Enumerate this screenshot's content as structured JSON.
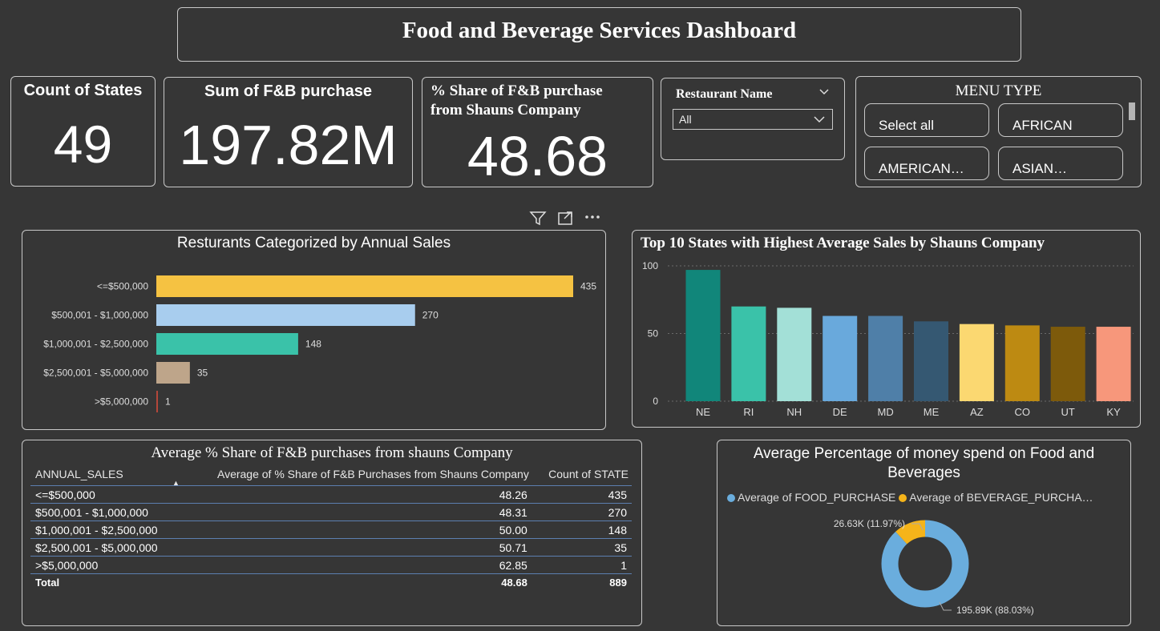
{
  "title": "Food and Beverage Services Dashboard",
  "kpis": {
    "states": {
      "label": "Count of States",
      "value": "49"
    },
    "sum": {
      "label": "Sum of F&B purchase",
      "value": "197.82M"
    },
    "share": {
      "label_line1": "% Share of F&B purchase",
      "label_line2": "from Shauns Company",
      "value": "48.68"
    }
  },
  "restaurant_slicer": {
    "label": "Restaurant Name",
    "selected": "All"
  },
  "menu_slicer": {
    "label": "MENU TYPE",
    "options": [
      "Select all",
      "AFRICAN",
      "AMERICAN…",
      "ASIAN…"
    ]
  },
  "colors": {
    "background": "#363636",
    "bar_colors": [
      "#f5c242",
      "#a8cdee",
      "#3ac2a9",
      "#bea58a",
      "#b4473a"
    ],
    "col_colors": [
      "#11867a",
      "#3ac2a9",
      "#a3e0d7",
      "#69a9dc",
      "#4f7fa8",
      "#355872",
      "#fbd871",
      "#bd8a12",
      "#7d5a0b",
      "#f7977b"
    ],
    "donut_food": "#6aaddd",
    "donut_bev": "#f5b41a"
  },
  "chart_data": [
    {
      "type": "bar",
      "orientation": "horizontal",
      "title": "Resturants Categorized by Annual Sales",
      "categories": [
        "<=$500,000",
        "$500,001 - $1,000,000",
        "$1,000,001 - $2,500,000",
        "$2,500,001 - $5,000,000",
        ">$5,000,000"
      ],
      "values": [
        435,
        270,
        148,
        35,
        1
      ],
      "data_labels": [
        "435",
        "270",
        "148",
        "35",
        "1"
      ],
      "xlim": [
        0,
        435
      ]
    },
    {
      "type": "bar",
      "title": "Top 10 States with Highest Average Sales by Shauns Company",
      "categories": [
        "NE",
        "RI",
        "NH",
        "DE",
        "MD",
        "ME",
        "AZ",
        "CO",
        "UT",
        "KY"
      ],
      "values": [
        97,
        70,
        69,
        63,
        63,
        59,
        57,
        56,
        55,
        55
      ],
      "yticks": [
        "0",
        "50",
        "100"
      ],
      "ylim": [
        0,
        100
      ],
      "grid": true
    },
    {
      "type": "pie",
      "title": "Average Percentage of money spend on Food and Beverages",
      "legend": [
        "Average of FOOD_PURCHASE",
        "Average of BEVERAGE_PURCHA…"
      ],
      "slices": [
        {
          "name": "Average of FOOD_PURCHASE",
          "value": 195.89,
          "unit": "K",
          "percent": 88.03,
          "label": "195.89K (88.03%)"
        },
        {
          "name": "Average of BEVERAGE_PURCHASE",
          "value": 26.63,
          "unit": "K",
          "percent": 11.97,
          "label": "26.63K (11.97%)"
        }
      ]
    }
  ],
  "table": {
    "title": "Average % Share of F&B purchases from shauns Company",
    "columns": [
      "ANNUAL_SALES",
      "Average of % Share of F&B Purchases from Shauns Company",
      "Count of STATE"
    ],
    "rows": [
      [
        "<=$500,000",
        "48.26",
        "435"
      ],
      [
        "$500,001 - $1,000,000",
        "48.31",
        "270"
      ],
      [
        "$1,000,001 - $2,500,000",
        "50.00",
        "148"
      ],
      [
        "$2,500,001 - $5,000,000",
        "50.71",
        "35"
      ],
      [
        ">$5,000,000",
        "62.85",
        "1"
      ]
    ],
    "total": [
      "Total",
      "48.68",
      "889"
    ]
  }
}
